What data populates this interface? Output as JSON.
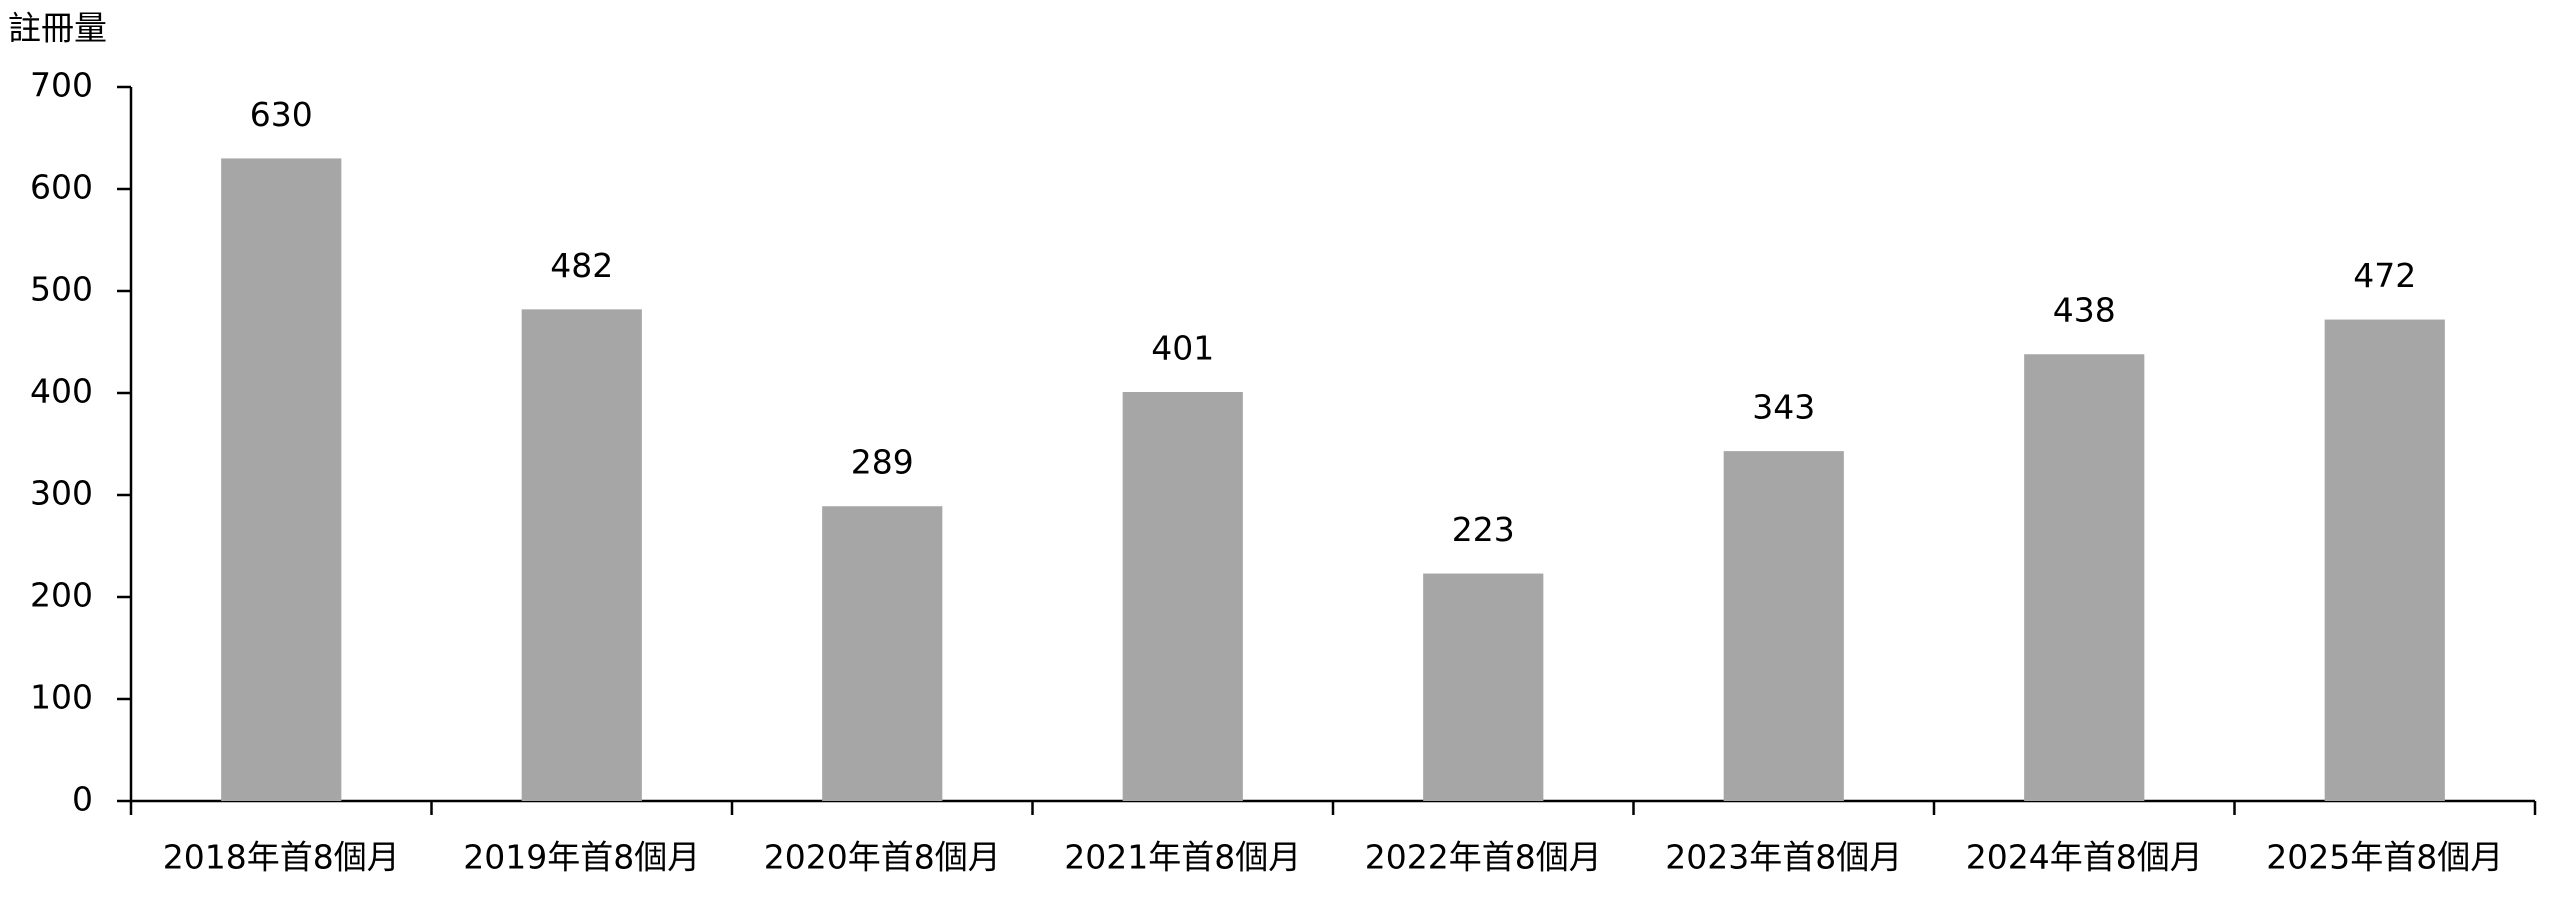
{
  "chart_data": {
    "type": "bar",
    "y_label": "註冊量",
    "categories": [
      "2018年首8個月",
      "2019年首8個月",
      "2020年首8個月",
      "2021年首8個月",
      "2022年首8個月",
      "2023年首8個月",
      "2024年首8個月",
      "2025年首8個月"
    ],
    "values": [
      630,
      482,
      289,
      401,
      223,
      343,
      438,
      472
    ],
    "color": "#a6a6a6",
    "ylim": [
      0,
      700
    ],
    "yticks": [
      0,
      100,
      200,
      300,
      400,
      500,
      600,
      700
    ],
    "grid": false
  }
}
